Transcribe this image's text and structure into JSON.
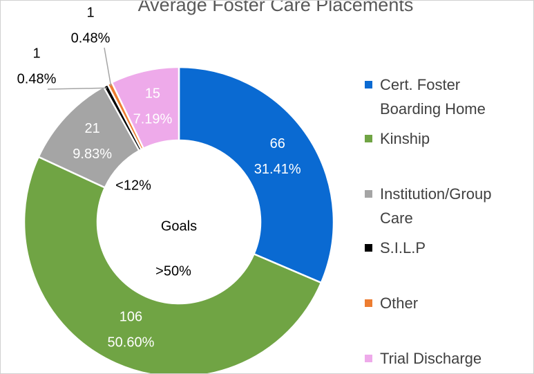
{
  "chart_data": {
    "type": "donut",
    "title": "Average Foster Care Placements",
    "categories": [
      "Cert. Foster Boarding Home",
      "Kinship",
      "Institution/Group Care",
      "S.I.L.P",
      "Other",
      "Trial Discharge"
    ],
    "values": [
      66,
      106,
      21,
      1,
      1,
      15
    ],
    "percent_labels": [
      "31.41%",
      "50.60%",
      "9.83%",
      "0.48%",
      "0.48%",
      "7.19%"
    ],
    "colors": [
      "#0a6ad2",
      "#70a444",
      "#a5a5a5",
      "#000000",
      "#ed7d31",
      "#eeaaea"
    ],
    "annotations": [
      "Goals",
      ">50%",
      "<12%"
    ],
    "legend": "right"
  }
}
